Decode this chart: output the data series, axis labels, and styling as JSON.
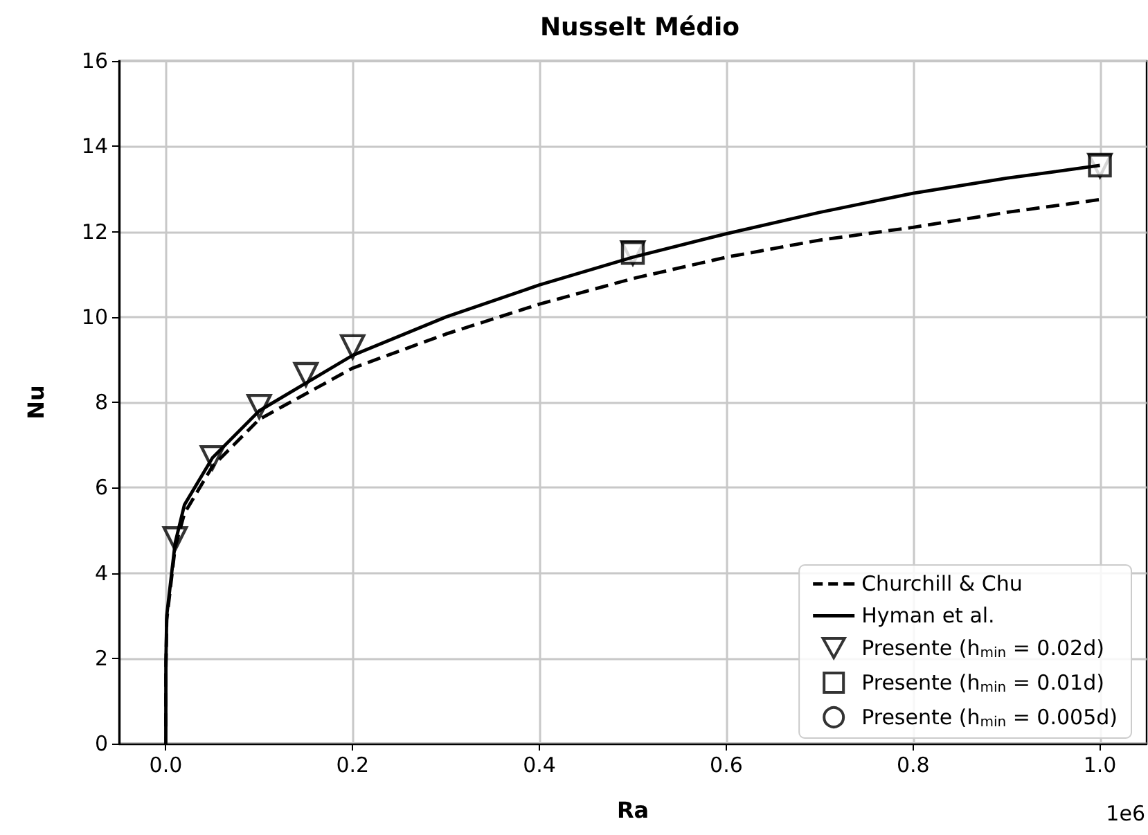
{
  "chart_data": {
    "type": "line",
    "title": "Nusselt Médio",
    "xlabel": "Ra",
    "ylabel": "Nu",
    "xlim": [
      -0.05,
      1.05
    ],
    "xticks": [
      {
        "value": 0,
        "label": "0.0"
      },
      0.2,
      0.4,
      0.6,
      0.8,
      {
        "value": 1,
        "label": "1.0"
      }
    ],
    "ylim": [
      0,
      16
    ],
    "yticks": [
      0,
      2,
      4,
      6,
      8,
      10,
      12,
      14,
      16
    ],
    "grid": true,
    "legend": "bottom right",
    "annotations": [
      "1e6"
    ],
    "series": [
      {
        "name": "Churchill & Chu",
        "color": "#000000",
        "line_style": "dashed",
        "marker": "none",
        "x": [
          0,
          0.0001,
          0.001,
          0.01,
          0.02,
          0.05,
          0.1,
          0.2,
          0.3,
          0.4,
          0.5,
          0.6,
          0.7,
          0.8,
          0.9,
          1
        ],
        "values": [
          0.4,
          1.7,
          2.9,
          4.6,
          5.4,
          6.5,
          7.6,
          8.8,
          9.6,
          10.3,
          10.9,
          11.4,
          11.8,
          12.1,
          12.45,
          12.75
        ]
      },
      {
        "name": "Hyman et al.",
        "color": "#000000",
        "line_style": "solid",
        "marker": "none",
        "x": [
          0,
          0.0001,
          0.001,
          0.01,
          0.02,
          0.05,
          0.1,
          0.2,
          0.3,
          0.4,
          0.5,
          0.6,
          0.7,
          0.8,
          0.9,
          1
        ],
        "values": [
          0,
          1.9,
          3.0,
          4.7,
          5.6,
          6.7,
          7.8,
          9.1,
          10.0,
          10.75,
          11.4,
          11.95,
          12.45,
          12.9,
          13.25,
          13.55
        ]
      },
      {
        "name": "Presente (h$_{min}$ = 0.02d)",
        "type": "scatter",
        "color": "#000000",
        "marker": "triangle_down",
        "x": [
          0.01,
          0.05,
          0.1,
          0.15,
          0.2,
          0.5,
          1
        ],
        "values": [
          4.8,
          6.7,
          7.9,
          8.65,
          9.3,
          11.5,
          13.55
        ]
      },
      {
        "name": "Presente (h$_{min}$ = 0.01d)",
        "type": "scatter",
        "color": "#000000",
        "marker": "square",
        "x": [
          0.5,
          1
        ],
        "values": [
          11.5,
          13.55
        ]
      },
      {
        "name": "Presente (h$_{min}$ = 0.005d)",
        "type": "scatter",
        "color": "#000000",
        "marker": "circle",
        "values": [
          null,
          null
        ]
      }
    ]
  }
}
